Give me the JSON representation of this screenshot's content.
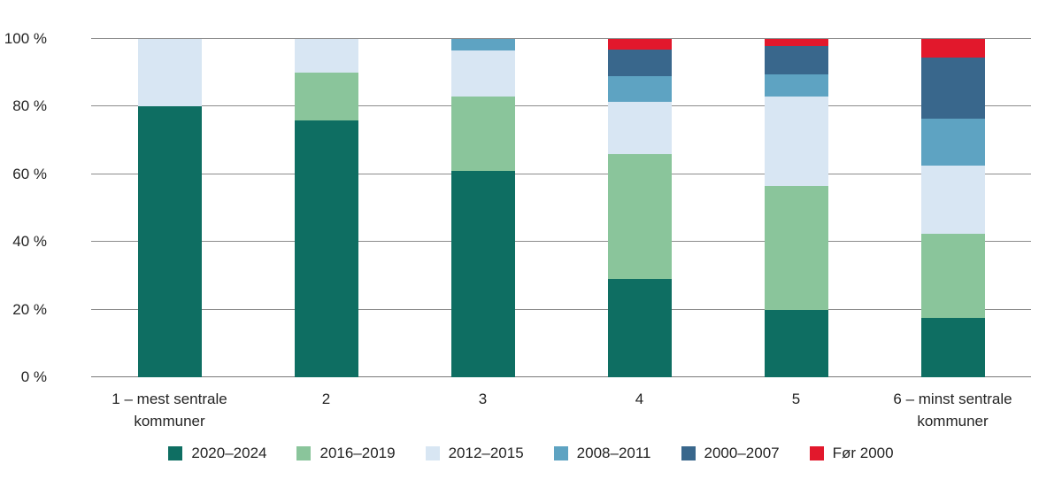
{
  "chart_data": {
    "type": "bar",
    "stacked": true,
    "percent": true,
    "title": "",
    "xlabel": "",
    "ylabel": "",
    "ylim": [
      0,
      100
    ],
    "grid": true,
    "legend_position": "bottom",
    "categories": [
      "1 – mest sentrale\nkommuner",
      "2",
      "3",
      "4",
      "5",
      "6 – minst sentrale\nkommuner"
    ],
    "yticks": [
      {
        "value": 0,
        "label": "0 %"
      },
      {
        "value": 20,
        "label": "20 %"
      },
      {
        "value": 40,
        "label": "40 %"
      },
      {
        "value": 60,
        "label": "60 %"
      },
      {
        "value": 80,
        "label": "80 %"
      },
      {
        "value": 100,
        "label": "100 %"
      }
    ],
    "series": [
      {
        "name": "2020–2024",
        "color": "#0e6e62",
        "values": [
          80,
          76,
          61,
          29,
          20,
          17.5
        ]
      },
      {
        "name": "2016–2019",
        "color": "#8ac59b",
        "values": [
          0,
          14,
          22,
          37,
          36.5,
          25
        ]
      },
      {
        "name": "2012–2015",
        "color": "#d8e6f3",
        "values": [
          20,
          10,
          13.5,
          15.5,
          26.5,
          20
        ]
      },
      {
        "name": "2008–2011",
        "color": "#5ea3c2",
        "values": [
          0,
          0,
          3.5,
          7.5,
          6.5,
          14
        ]
      },
      {
        "name": "2000–2007",
        "color": "#39678c",
        "values": [
          0,
          0,
          0,
          8,
          8.5,
          18
        ]
      },
      {
        "name": "Før 2000",
        "color": "#e2182c",
        "values": [
          0,
          0,
          0,
          3,
          2,
          5.5
        ]
      }
    ],
    "colors": {
      "background": "#ffffff",
      "gridline": "#8c8c8c",
      "axis_line": "#7a7a7a",
      "text": "#242424"
    }
  }
}
